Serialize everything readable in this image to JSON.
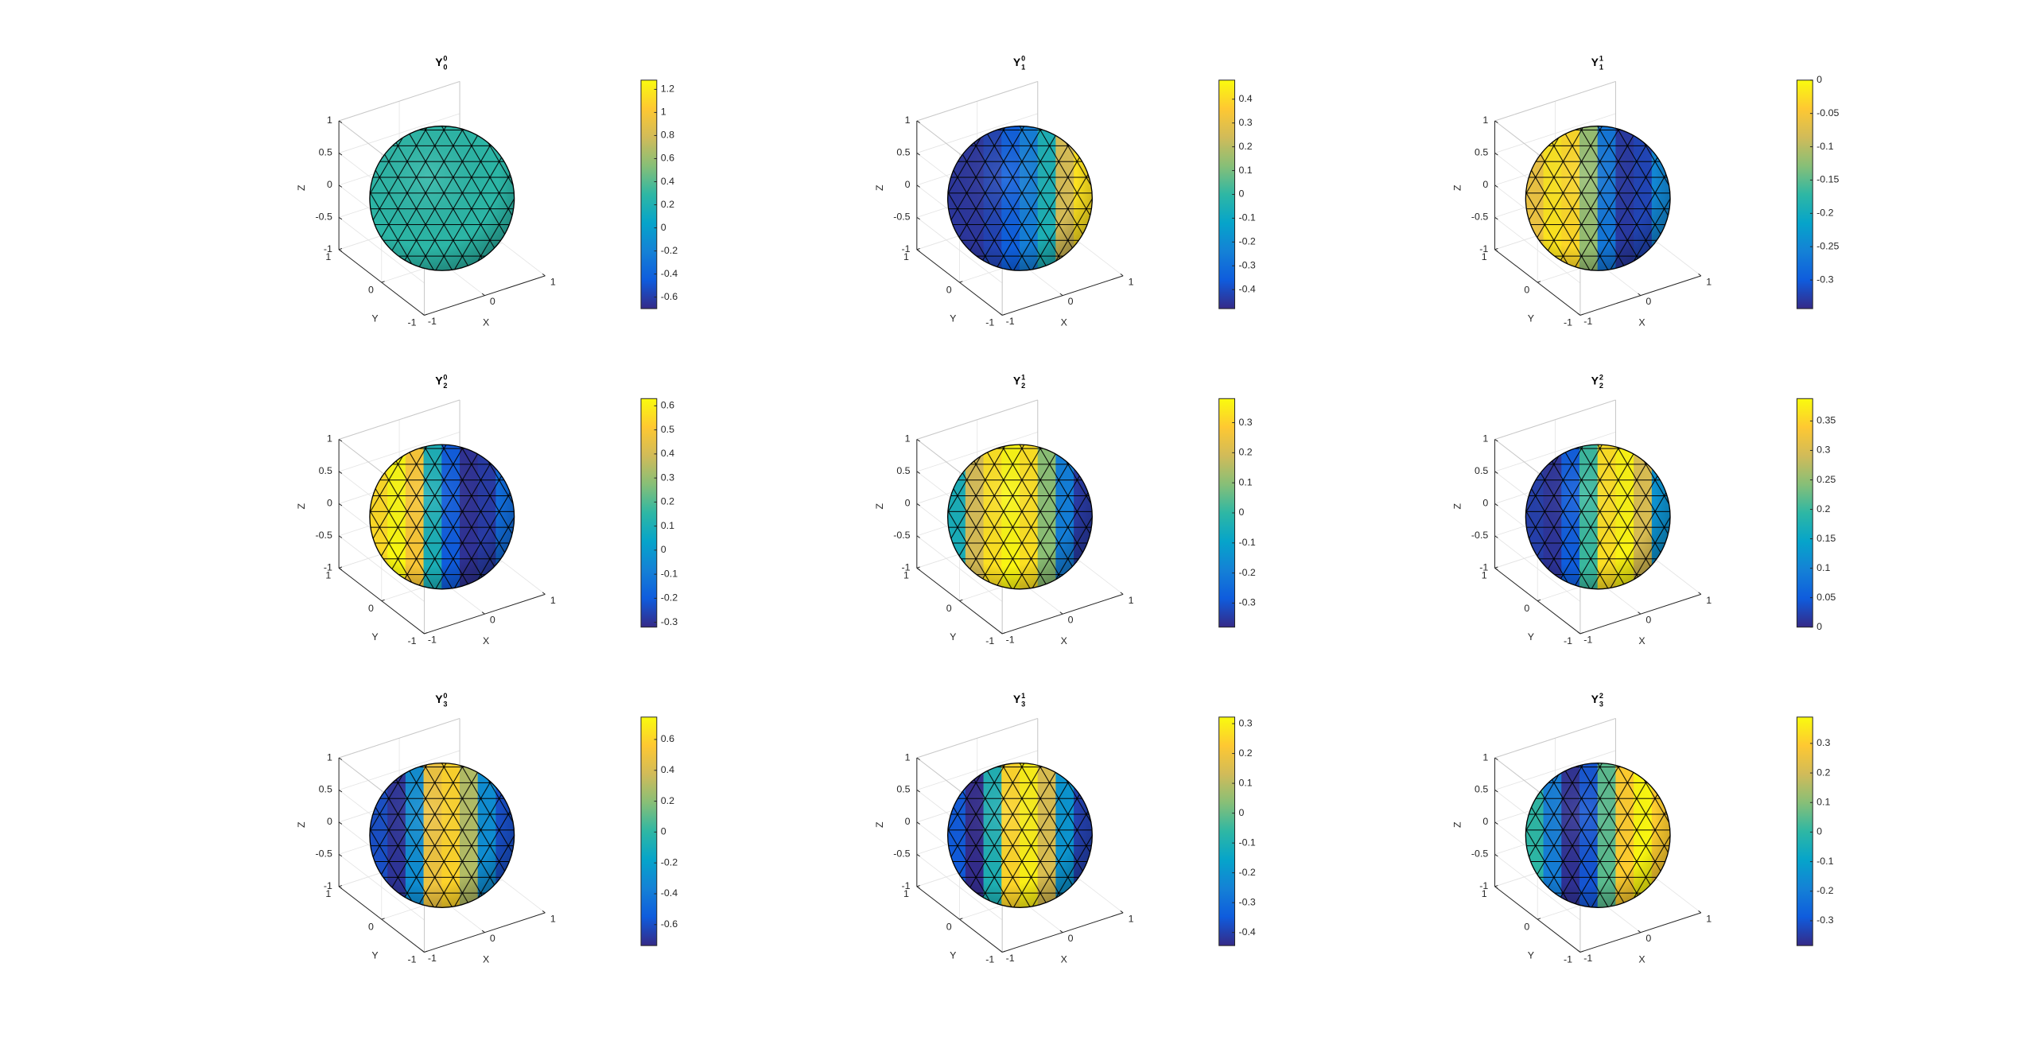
{
  "chart_data": [
    {
      "type": "surface",
      "title": {
        "text": "Y",
        "sub": "0",
        "sup": "0"
      },
      "xlabel": "X",
      "ylabel": "Y",
      "zlabel": "Z",
      "xlim": [
        -1,
        1
      ],
      "ylim": [
        -1,
        1
      ],
      "zlim": [
        -1,
        1
      ],
      "xticks": [
        -1,
        0,
        1
      ],
      "yticks": [
        -1,
        0,
        1
      ],
      "zticks": [
        -1,
        -0.5,
        0,
        0.5,
        1
      ],
      "grid": true,
      "colormap": "parula",
      "clim": [
        -0.7,
        1.28
      ],
      "colorbar_ticks": [
        -0.6,
        -0.4,
        -0.2,
        0,
        0.2,
        0.4,
        0.6,
        0.8,
        1,
        1.2
      ],
      "surface_values": [
        0.28,
        0.28,
        0.28,
        0.28,
        0.28,
        0.28,
        0.28,
        0.28
      ]
    },
    {
      "type": "surface",
      "title": {
        "text": "Y",
        "sub": "1",
        "sup": "0"
      },
      "xlabel": "X",
      "ylabel": "Y",
      "zlabel": "Z",
      "xlim": [
        -1,
        1
      ],
      "ylim": [
        -1,
        1
      ],
      "zlim": [
        -1,
        1
      ],
      "xticks": [
        -1,
        0,
        1
      ],
      "yticks": [
        -1,
        0,
        1
      ],
      "zticks": [
        -1,
        -0.5,
        0,
        0.5,
        1
      ],
      "grid": true,
      "colormap": "parula",
      "clim": [
        -0.48,
        0.48
      ],
      "colorbar_ticks": [
        -0.4,
        -0.3,
        -0.2,
        -0.1,
        0,
        0.1,
        0.2,
        0.3,
        0.4
      ],
      "surface_values": [
        -0.45,
        -0.45,
        -0.42,
        -0.35,
        -0.25,
        -0.05,
        0.25,
        0.42
      ]
    },
    {
      "type": "surface",
      "title": {
        "text": "Y",
        "sub": "1",
        "sup": "1"
      },
      "xlabel": "X",
      "ylabel": "Y",
      "zlabel": "Z",
      "xlim": [
        -1,
        1
      ],
      "ylim": [
        -1,
        1
      ],
      "zlim": [
        -1,
        1
      ],
      "xticks": [
        -1,
        0,
        1
      ],
      "yticks": [
        -1,
        0,
        1
      ],
      "zticks": [
        -1,
        -0.5,
        0,
        0.5,
        1
      ],
      "grid": true,
      "colormap": "parula",
      "clim": [
        -0.343,
        0
      ],
      "colorbar_ticks": [
        -0.3,
        -0.25,
        -0.2,
        -0.15,
        -0.1,
        -0.05,
        0
      ],
      "surface_values": [
        -0.06,
        -0.02,
        -0.03,
        -0.12,
        -0.27,
        -0.33,
        -0.32,
        -0.25
      ]
    },
    {
      "type": "surface",
      "title": {
        "text": "Y",
        "sub": "2",
        "sup": "0"
      },
      "xlabel": "X",
      "ylabel": "Y",
      "zlabel": "Z",
      "xlim": [
        -1,
        1
      ],
      "ylim": [
        -1,
        1
      ],
      "zlim": [
        -1,
        1
      ],
      "xticks": [
        -1,
        0,
        1
      ],
      "yticks": [
        -1,
        0,
        1
      ],
      "zticks": [
        -1,
        -0.5,
        0,
        0.5,
        1
      ],
      "grid": true,
      "colormap": "parula",
      "clim": [
        -0.32,
        0.63
      ],
      "colorbar_ticks": [
        -0.3,
        -0.2,
        -0.1,
        0,
        0.1,
        0.2,
        0.3,
        0.4,
        0.5,
        0.6
      ],
      "surface_values": [
        0.55,
        0.62,
        0.5,
        0.1,
        -0.2,
        -0.3,
        -0.28,
        -0.15
      ]
    },
    {
      "type": "surface",
      "title": {
        "text": "Y",
        "sub": "2",
        "sup": "1"
      },
      "xlabel": "X",
      "ylabel": "Y",
      "zlabel": "Z",
      "xlim": [
        -1,
        1
      ],
      "ylim": [
        -1,
        1
      ],
      "zlim": [
        -1,
        1
      ],
      "xticks": [
        -1,
        0,
        1
      ],
      "yticks": [
        -1,
        0,
        1
      ],
      "zticks": [
        -1,
        -0.5,
        0,
        0.5,
        1
      ],
      "grid": true,
      "colormap": "parula",
      "clim": [
        -0.38,
        0.38
      ],
      "colorbar_ticks": [
        -0.3,
        -0.2,
        -0.1,
        0,
        0.1,
        0.2,
        0.3
      ],
      "surface_values": [
        -0.05,
        0.2,
        0.33,
        0.37,
        0.33,
        0.1,
        -0.2,
        -0.35
      ]
    },
    {
      "type": "surface",
      "title": {
        "text": "Y",
        "sub": "2",
        "sup": "2"
      },
      "xlabel": "X",
      "ylabel": "Y",
      "zlabel": "Z",
      "xlim": [
        -1,
        1
      ],
      "ylim": [
        -1,
        1
      ],
      "zlim": [
        -1,
        1
      ],
      "xticks": [
        -1,
        0,
        1
      ],
      "yticks": [
        -1,
        0,
        1
      ],
      "zticks": [
        -1,
        -0.5,
        0,
        0.5,
        1
      ],
      "grid": true,
      "colormap": "parula",
      "clim": [
        0,
        0.388
      ],
      "colorbar_ticks": [
        0,
        0.05,
        0.1,
        0.15,
        0.2,
        0.25,
        0.3,
        0.35
      ],
      "surface_values": [
        0.02,
        0.01,
        0.05,
        0.2,
        0.36,
        0.38,
        0.3,
        0.12
      ]
    },
    {
      "type": "surface",
      "title": {
        "text": "Y",
        "sub": "3",
        "sup": "0"
      },
      "xlabel": "X",
      "ylabel": "Y",
      "zlabel": "Z",
      "xlim": [
        -1,
        1
      ],
      "ylim": [
        -1,
        1
      ],
      "zlim": [
        -1,
        1
      ],
      "xticks": [
        -1,
        0,
        1
      ],
      "yticks": [
        -1,
        0,
        1
      ],
      "zticks": [
        -1,
        -0.5,
        0,
        0.5,
        1
      ],
      "grid": true,
      "colormap": "parula",
      "clim": [
        -0.736,
        0.745
      ],
      "colorbar_ticks": [
        -0.6,
        -0.4,
        -0.2,
        0,
        0.2,
        0.4,
        0.6
      ],
      "surface_values": [
        -0.6,
        -0.7,
        -0.3,
        0.5,
        0.6,
        0.3,
        -0.3,
        -0.6
      ]
    },
    {
      "type": "surface",
      "title": {
        "text": "Y",
        "sub": "3",
        "sup": "1"
      },
      "xlabel": "X",
      "ylabel": "Y",
      "zlabel": "Z",
      "xlim": [
        -1,
        1
      ],
      "ylim": [
        -1,
        1
      ],
      "zlim": [
        -1,
        1
      ],
      "xticks": [
        -1,
        0,
        1
      ],
      "yticks": [
        -1,
        0,
        1
      ],
      "zticks": [
        -1,
        -0.5,
        0,
        0.5,
        1
      ],
      "grid": true,
      "colormap": "parula",
      "clim": [
        -0.444,
        0.322
      ],
      "colorbar_ticks": [
        -0.4,
        -0.3,
        -0.2,
        -0.1,
        0,
        0.1,
        0.2,
        0.3
      ],
      "surface_values": [
        -0.35,
        -0.44,
        -0.1,
        0.25,
        0.3,
        0.15,
        -0.2,
        -0.4
      ]
    },
    {
      "type": "surface",
      "title": {
        "text": "Y",
        "sub": "3",
        "sup": "2"
      },
      "xlabel": "X",
      "ylabel": "Y",
      "zlabel": "Z",
      "xlim": [
        -1,
        1
      ],
      "ylim": [
        -1,
        1
      ],
      "zlim": [
        -1,
        1
      ],
      "xticks": [
        -1,
        0,
        1
      ],
      "yticks": [
        -1,
        0,
        1
      ],
      "zticks": [
        -1,
        -0.5,
        0,
        0.5,
        1
      ],
      "grid": true,
      "colormap": "parula",
      "clim": [
        -0.384,
        0.389
      ],
      "colorbar_ticks": [
        -0.3,
        -0.2,
        -0.1,
        0,
        0.1,
        0.2,
        0.3
      ],
      "surface_values": [
        0.0,
        -0.2,
        -0.37,
        -0.3,
        0.05,
        0.3,
        0.38,
        0.3
      ]
    }
  ]
}
